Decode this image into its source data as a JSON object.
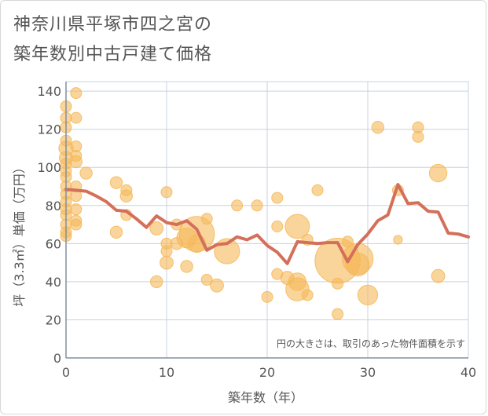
{
  "title_line1": "神奈川県平塚市四之宮の",
  "title_line2": "築年数別中古戸建て価格",
  "chart_data": {
    "type": "scatter",
    "xlabel": "築年数（年）",
    "ylabel": "坪（3.3㎡）単価（万円）",
    "xlim": [
      0,
      40
    ],
    "ylim": [
      0,
      145
    ],
    "xticks": [
      0,
      10,
      20,
      30,
      40
    ],
    "yticks": [
      0,
      20,
      40,
      60,
      80,
      100,
      120,
      140
    ],
    "grid": true,
    "annotation": "円の大きさは、取引のあった物件面積を示す",
    "colors": {
      "bubble": "#f5b95a",
      "line": "#d4705a",
      "grid": "#c8d0e0",
      "axis": "#8090a0"
    },
    "points": [
      {
        "x": 0,
        "y": 132,
        "s": 1
      },
      {
        "x": 0,
        "y": 126,
        "s": 1
      },
      {
        "x": 0,
        "y": 121,
        "s": 1
      },
      {
        "x": 0,
        "y": 114,
        "s": 1
      },
      {
        "x": 0,
        "y": 110,
        "s": 1.3
      },
      {
        "x": 0,
        "y": 105,
        "s": 1.2
      },
      {
        "x": 0,
        "y": 102,
        "s": 1
      },
      {
        "x": 0,
        "y": 98,
        "s": 1
      },
      {
        "x": 0,
        "y": 95,
        "s": 1
      },
      {
        "x": 0,
        "y": 90,
        "s": 1
      },
      {
        "x": 0,
        "y": 86,
        "s": 1
      },
      {
        "x": 0,
        "y": 82,
        "s": 1
      },
      {
        "x": 0,
        "y": 78,
        "s": 1
      },
      {
        "x": 0,
        "y": 75,
        "s": 1
      },
      {
        "x": 0,
        "y": 70,
        "s": 1
      },
      {
        "x": 0,
        "y": 66,
        "s": 1
      },
      {
        "x": 0,
        "y": 64,
        "s": 1
      },
      {
        "x": 1,
        "y": 139,
        "s": 1
      },
      {
        "x": 1,
        "y": 126,
        "s": 1
      },
      {
        "x": 1,
        "y": 111,
        "s": 1
      },
      {
        "x": 1,
        "y": 106,
        "s": 1
      },
      {
        "x": 1,
        "y": 103,
        "s": 1.1
      },
      {
        "x": 1,
        "y": 90,
        "s": 1
      },
      {
        "x": 1,
        "y": 85,
        "s": 1
      },
      {
        "x": 1,
        "y": 78,
        "s": 1
      },
      {
        "x": 1,
        "y": 72,
        "s": 1
      },
      {
        "x": 1,
        "y": 70,
        "s": 1
      },
      {
        "x": 2,
        "y": 97,
        "s": 1.1
      },
      {
        "x": 5,
        "y": 92,
        "s": 1.1
      },
      {
        "x": 5,
        "y": 66,
        "s": 1.1
      },
      {
        "x": 6,
        "y": 88,
        "s": 1
      },
      {
        "x": 6,
        "y": 85,
        "s": 1.1
      },
      {
        "x": 6,
        "y": 75,
        "s": 1
      },
      {
        "x": 9,
        "y": 68,
        "s": 1.2
      },
      {
        "x": 9,
        "y": 40,
        "s": 1.1
      },
      {
        "x": 10,
        "y": 87,
        "s": 1
      },
      {
        "x": 10,
        "y": 60,
        "s": 1
      },
      {
        "x": 10,
        "y": 56,
        "s": 1
      },
      {
        "x": 10,
        "y": 50,
        "s": 1.2
      },
      {
        "x": 11,
        "y": 70,
        "s": 1
      },
      {
        "x": 11,
        "y": 60,
        "s": 1.1
      },
      {
        "x": 12,
        "y": 63,
        "s": 1.8
      },
      {
        "x": 12,
        "y": 48,
        "s": 1.1
      },
      {
        "x": 13,
        "y": 65,
        "s": 3.2
      },
      {
        "x": 13,
        "y": 60,
        "s": 1.6
      },
      {
        "x": 14,
        "y": 73,
        "s": 1
      },
      {
        "x": 14,
        "y": 41,
        "s": 1
      },
      {
        "x": 15,
        "y": 38,
        "s": 1.2
      },
      {
        "x": 16,
        "y": 56,
        "s": 2.3
      },
      {
        "x": 17,
        "y": 80,
        "s": 1
      },
      {
        "x": 19,
        "y": 80,
        "s": 1
      },
      {
        "x": 20,
        "y": 32,
        "s": 1
      },
      {
        "x": 21,
        "y": 84,
        "s": 1
      },
      {
        "x": 21,
        "y": 69,
        "s": 1
      },
      {
        "x": 21,
        "y": 44,
        "s": 1
      },
      {
        "x": 22,
        "y": 42,
        "s": 1.2
      },
      {
        "x": 23,
        "y": 69,
        "s": 2.2
      },
      {
        "x": 23,
        "y": 40,
        "s": 1.6
      },
      {
        "x": 23,
        "y": 36,
        "s": 2.1
      },
      {
        "x": 24,
        "y": 62,
        "s": 1
      },
      {
        "x": 24,
        "y": 33,
        "s": 1
      },
      {
        "x": 25,
        "y": 88,
        "s": 1
      },
      {
        "x": 27,
        "y": 51,
        "s": 4.1
      },
      {
        "x": 27,
        "y": 23,
        "s": 1
      },
      {
        "x": 27,
        "y": 39,
        "s": 1
      },
      {
        "x": 28,
        "y": 61,
        "s": 1
      },
      {
        "x": 29,
        "y": 49,
        "s": 2.1
      },
      {
        "x": 29,
        "y": 52,
        "s": 2.8
      },
      {
        "x": 30,
        "y": 33,
        "s": 1.8
      },
      {
        "x": 31,
        "y": 121,
        "s": 1.1
      },
      {
        "x": 33,
        "y": 88,
        "s": 1
      },
      {
        "x": 33,
        "y": 62,
        "s": 0.8
      },
      {
        "x": 35,
        "y": 121,
        "s": 1
      },
      {
        "x": 35,
        "y": 116,
        "s": 1
      },
      {
        "x": 37,
        "y": 97,
        "s": 1.6
      },
      {
        "x": 37,
        "y": 43,
        "s": 1.2
      }
    ],
    "trend_line": [
      {
        "x": 0,
        "y": 88.5
      },
      {
        "x": 1,
        "y": 88
      },
      {
        "x": 2,
        "y": 87.5
      },
      {
        "x": 3,
        "y": 85
      },
      {
        "x": 4,
        "y": 82
      },
      {
        "x": 5,
        "y": 77.5
      },
      {
        "x": 6,
        "y": 77
      },
      {
        "x": 7,
        "y": 73
      },
      {
        "x": 8,
        "y": 68.5
      },
      {
        "x": 9,
        "y": 74.5
      },
      {
        "x": 10,
        "y": 71
      },
      {
        "x": 11,
        "y": 70
      },
      {
        "x": 12,
        "y": 72
      },
      {
        "x": 13,
        "y": 67.5
      },
      {
        "x": 14,
        "y": 56.5
      },
      {
        "x": 15,
        "y": 59.5
      },
      {
        "x": 16,
        "y": 60
      },
      {
        "x": 17,
        "y": 63.5
      },
      {
        "x": 18,
        "y": 62
      },
      {
        "x": 19,
        "y": 64.5
      },
      {
        "x": 20,
        "y": 59
      },
      {
        "x": 21,
        "y": 55.5
      },
      {
        "x": 22,
        "y": 49.5
      },
      {
        "x": 23,
        "y": 61
      },
      {
        "x": 24,
        "y": 60.5
      },
      {
        "x": 25,
        "y": 60
      },
      {
        "x": 26,
        "y": 60.5
      },
      {
        "x": 27,
        "y": 60.5
      },
      {
        "x": 28,
        "y": 50.5
      },
      {
        "x": 29,
        "y": 59.5
      },
      {
        "x": 30,
        "y": 65
      },
      {
        "x": 31,
        "y": 72
      },
      {
        "x": 32,
        "y": 75
      },
      {
        "x": 33,
        "y": 91
      },
      {
        "x": 34,
        "y": 81
      },
      {
        "x": 35,
        "y": 81.5
      },
      {
        "x": 36,
        "y": 77
      },
      {
        "x": 37,
        "y": 76.5
      },
      {
        "x": 38,
        "y": 65.5
      },
      {
        "x": 39,
        "y": 65
      },
      {
        "x": 40,
        "y": 63.5
      }
    ]
  }
}
